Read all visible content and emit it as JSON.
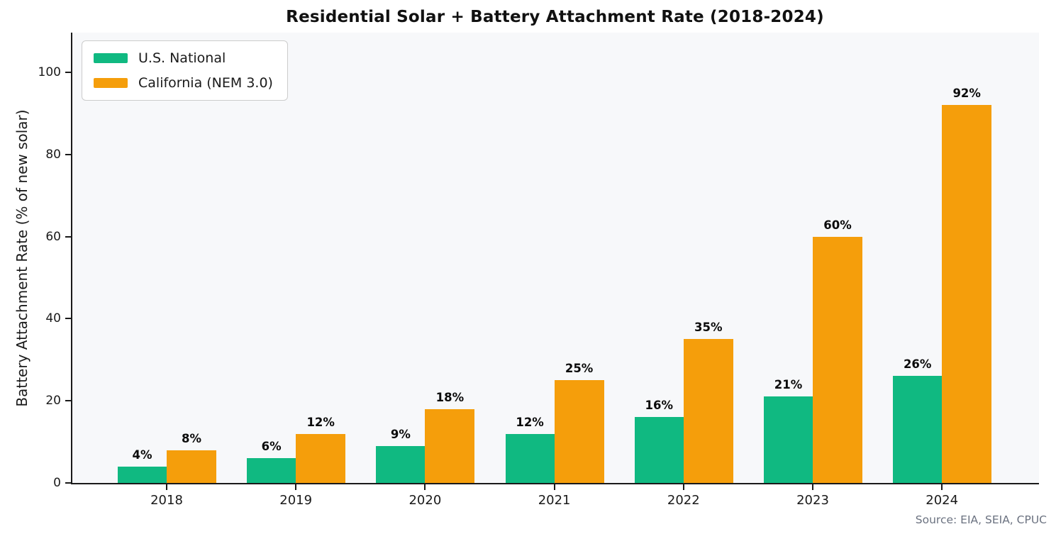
{
  "chart_data": {
    "type": "bar",
    "title": "Residential Solar + Battery Attachment Rate (2018-2024)",
    "ylabel": "Battery Attachment Rate (% of new solar)",
    "xlabel": "",
    "categories": [
      "2018",
      "2019",
      "2020",
      "2021",
      "2022",
      "2023",
      "2024"
    ],
    "series": [
      {
        "name": "U.S. National",
        "color": "#10B981",
        "values": [
          4,
          6,
          9,
          12,
          16,
          21,
          26
        ]
      },
      {
        "name": "California (NEM 3.0)",
        "color": "#F59E0B",
        "values": [
          8,
          12,
          18,
          25,
          35,
          60,
          92
        ]
      }
    ],
    "value_labels": [
      [
        "4%",
        "6%",
        "9%",
        "12%",
        "16%",
        "21%",
        "26%"
      ],
      [
        "8%",
        "12%",
        "18%",
        "25%",
        "35%",
        "60%",
        "92%"
      ]
    ],
    "yticks": [
      "0",
      "20",
      "40",
      "60",
      "80",
      "100"
    ],
    "ylim": [
      0,
      110
    ],
    "grid": false,
    "legend_position": "upper left",
    "plot_background": "#f7f8fa",
    "source": "Source: EIA, SEIA, CPUC"
  }
}
